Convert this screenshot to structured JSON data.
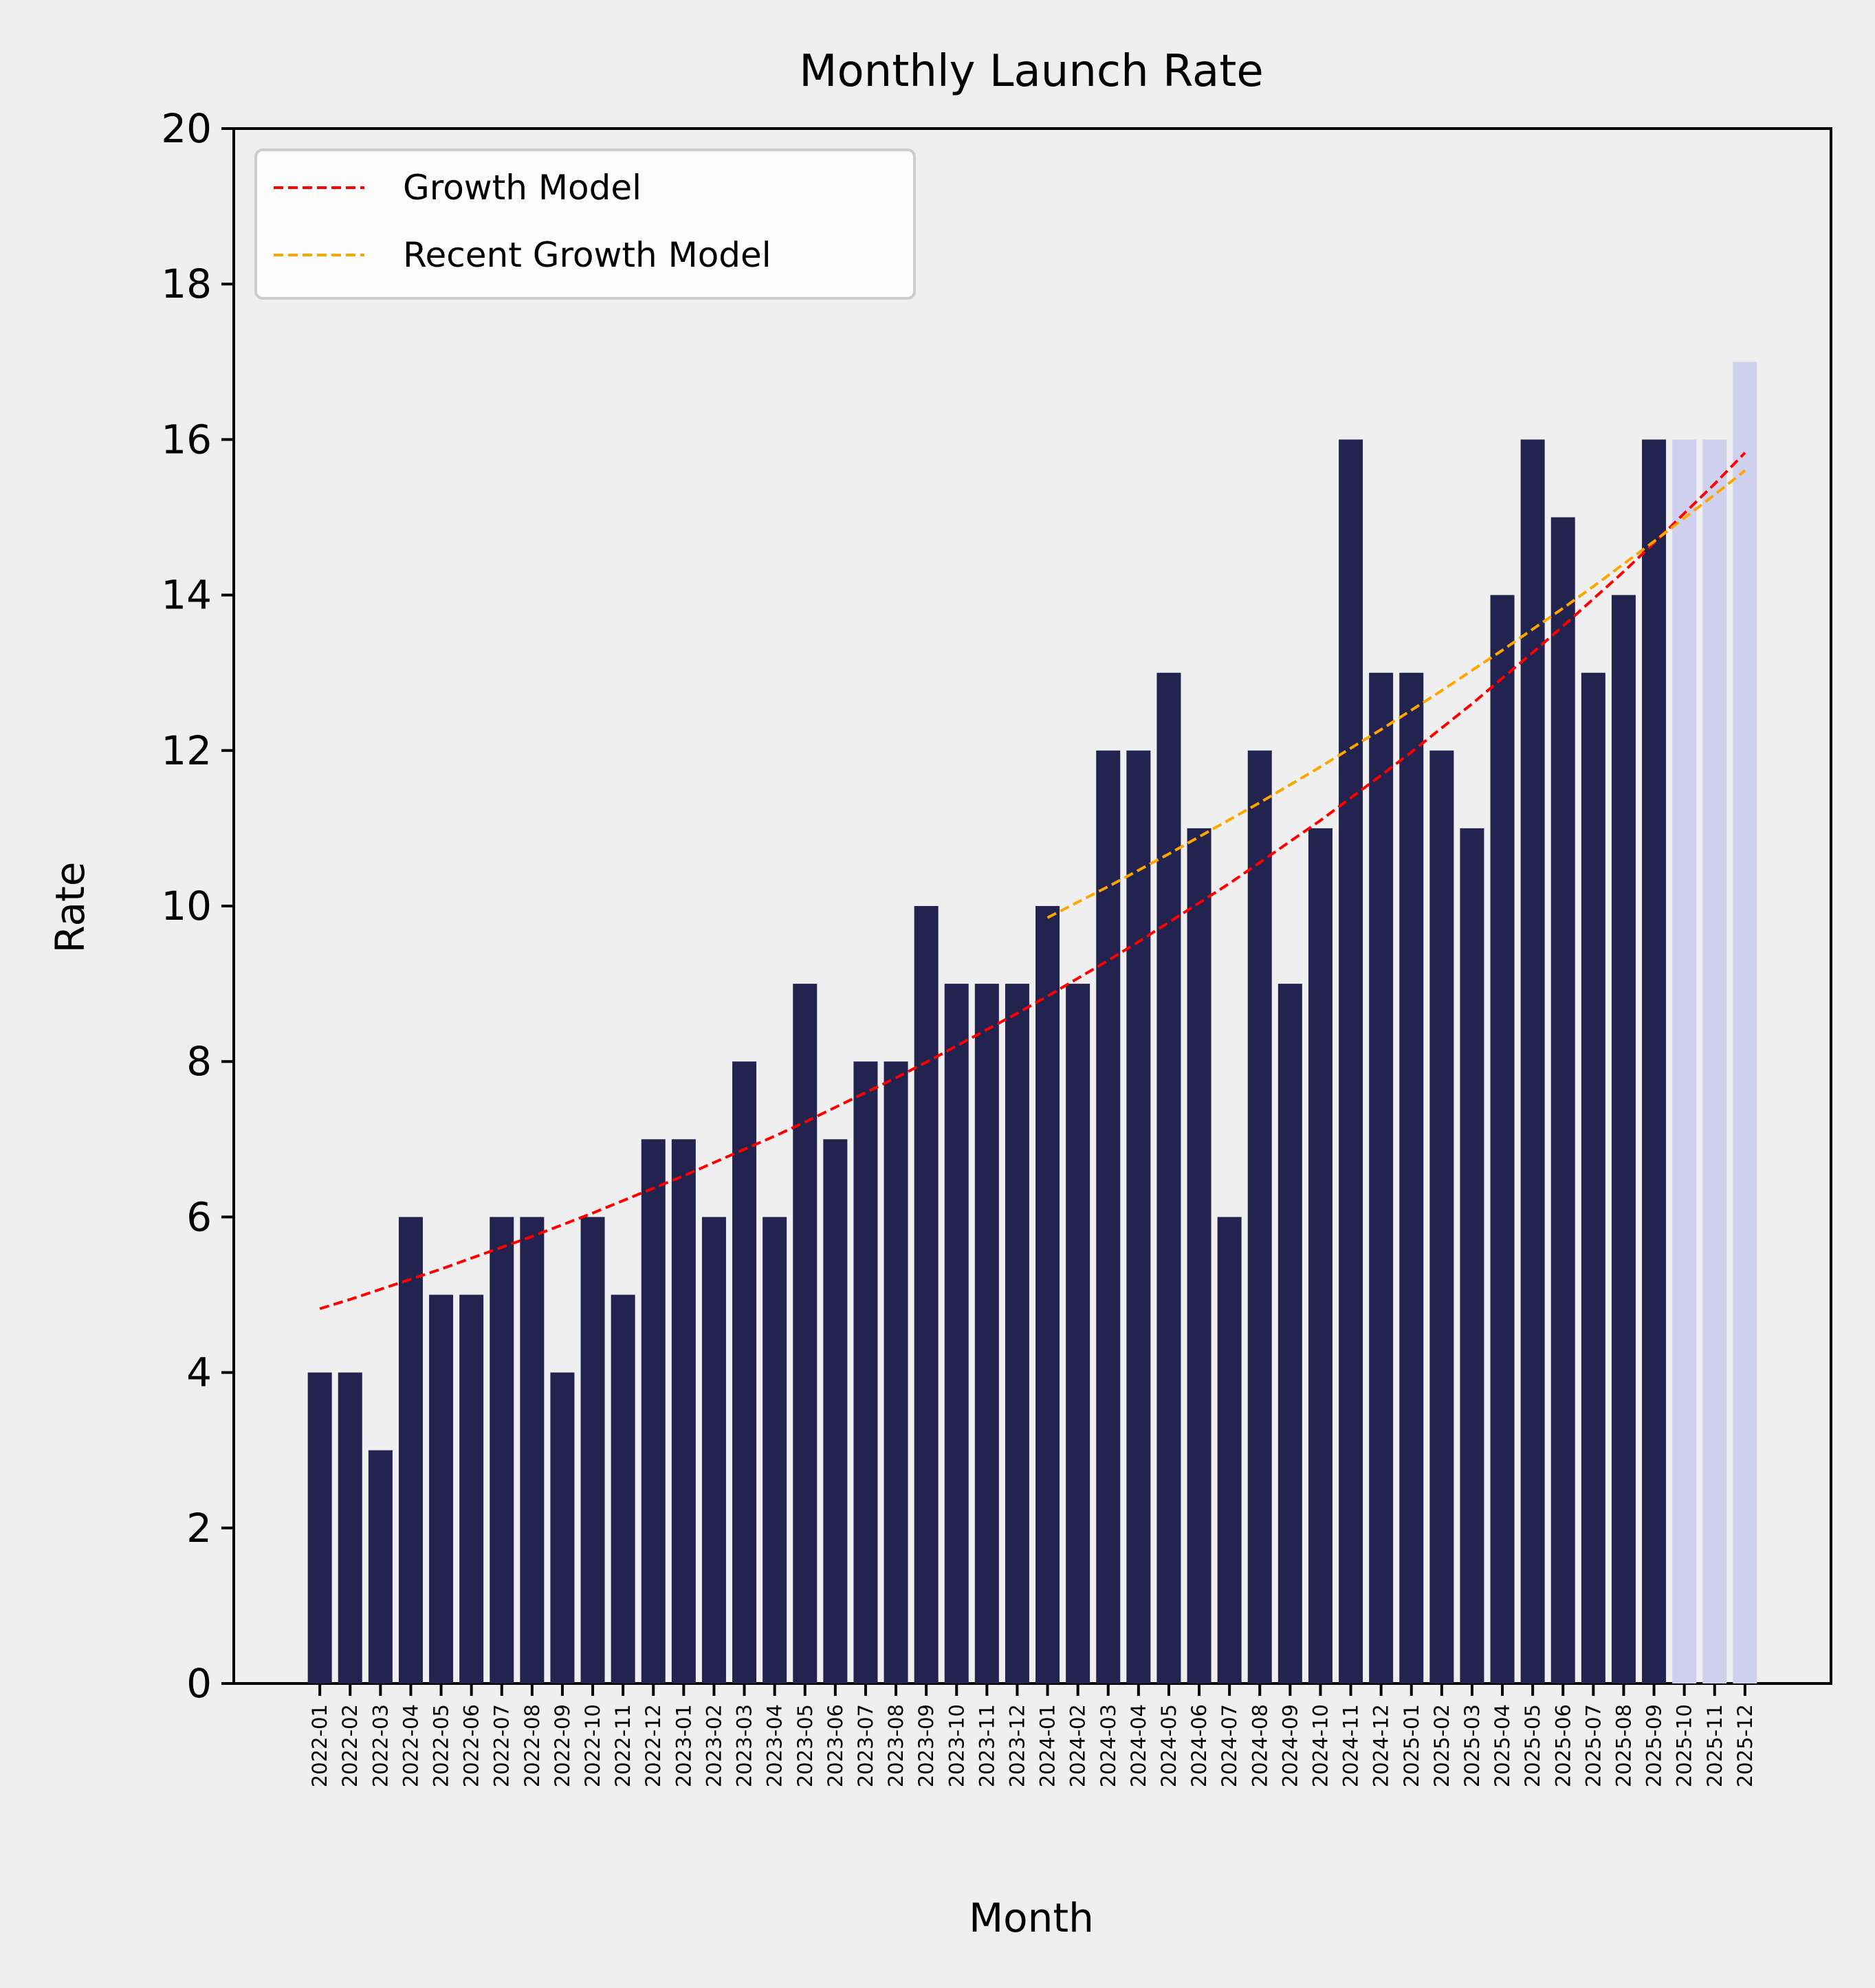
{
  "chart_data": {
    "type": "bar",
    "title": "Monthly Launch Rate",
    "xlabel": "Month",
    "ylabel": "Rate",
    "ylim": [
      0,
      20
    ],
    "yticks": [
      0,
      2,
      4,
      6,
      8,
      10,
      12,
      14,
      16,
      18,
      20
    ],
    "grid": false,
    "legend_position": "top-left",
    "categories": [
      "2022-01",
      "2022-02",
      "2022-03",
      "2022-04",
      "2022-05",
      "2022-06",
      "2022-07",
      "2022-08",
      "2022-09",
      "2022-10",
      "2022-11",
      "2022-12",
      "2023-01",
      "2023-02",
      "2023-03",
      "2023-04",
      "2023-05",
      "2023-06",
      "2023-07",
      "2023-08",
      "2023-09",
      "2023-10",
      "2023-11",
      "2023-12",
      "2024-01",
      "2024-02",
      "2024-03",
      "2024-04",
      "2024-05",
      "2024-06",
      "2024-07",
      "2024-08",
      "2024-09",
      "2024-10",
      "2024-11",
      "2024-12",
      "2025-01",
      "2025-02",
      "2025-03",
      "2025-04",
      "2025-05",
      "2025-06",
      "2025-07",
      "2025-08",
      "2025-09",
      "2025-10",
      "2025-11",
      "2025-12"
    ],
    "values": [
      4,
      4,
      3,
      6,
      5,
      5,
      6,
      6,
      4,
      6,
      5,
      7,
      7,
      6,
      8,
      6,
      9,
      7,
      8,
      8,
      10,
      9,
      9,
      9,
      10,
      9,
      12,
      12,
      13,
      11,
      6,
      12,
      9,
      11,
      16,
      13,
      13,
      12,
      11,
      14,
      16,
      15,
      13,
      14,
      16,
      16,
      16,
      17
    ],
    "projected_from": "2025-10",
    "colors": {
      "actual": "#23234f",
      "projected": "#cfcfee",
      "background": "#efefef"
    },
    "lines": [
      {
        "name": "Growth Model",
        "color": "#ff0000",
        "style": "dashed",
        "x_start": "2022-01",
        "x_end": "2025-12",
        "values": [
          4.82,
          4.94,
          5.07,
          5.2,
          5.33,
          5.47,
          5.61,
          5.75,
          5.9,
          6.05,
          6.21,
          6.37,
          6.53,
          6.7,
          6.87,
          7.04,
          7.22,
          7.41,
          7.6,
          7.79,
          7.99,
          8.2,
          8.41,
          8.62,
          8.84,
          9.07,
          9.3,
          9.54,
          9.79,
          10.04,
          10.29,
          10.56,
          10.83,
          11.1,
          11.39,
          11.68,
          11.98,
          12.29,
          12.6,
          12.93,
          13.26,
          13.6,
          13.95,
          14.3,
          14.67,
          15.05,
          15.43,
          15.83
        ]
      },
      {
        "name": "Recent Growth Model",
        "color": "#ffa500",
        "style": "dashed",
        "x_start": "2024-01",
        "x_end": "2025-12",
        "values": [
          9.85,
          10.05,
          10.25,
          10.46,
          10.67,
          10.89,
          11.11,
          11.33,
          11.56,
          11.79,
          12.03,
          12.27,
          12.52,
          12.77,
          13.03,
          13.29,
          13.56,
          13.83,
          14.11,
          14.4,
          14.69,
          14.99,
          15.29,
          15.6
        ]
      }
    ]
  }
}
